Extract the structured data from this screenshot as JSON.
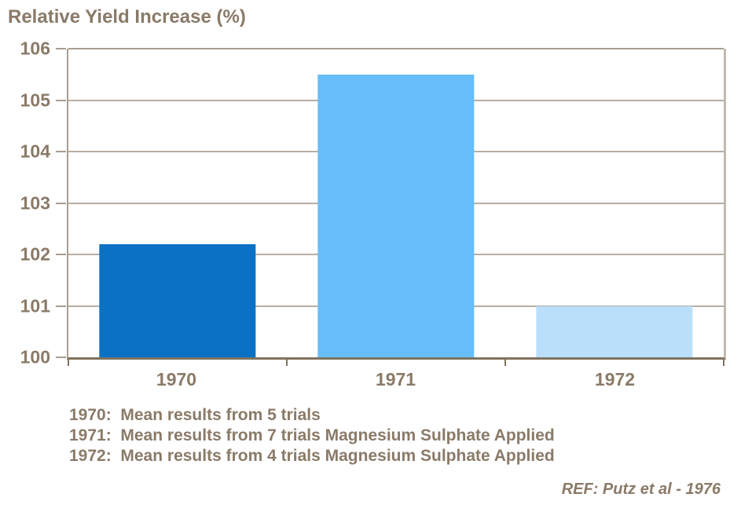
{
  "chart_data": {
    "type": "bar",
    "title": "Relative Yield Increase (%)",
    "categories": [
      "1970",
      "1971",
      "1972"
    ],
    "values": [
      102.2,
      105.5,
      101.0
    ],
    "bar_colors": [
      "#0a71c5",
      "#67bdf9",
      "#b9dffb"
    ],
    "ylim": [
      100,
      106
    ],
    "yticks": [
      100,
      101,
      102,
      103,
      104,
      105,
      106
    ],
    "xlabel": "",
    "ylabel": "",
    "grid": "horizontal",
    "legend": "none"
  },
  "footnotes": {
    "lines": [
      "1970:  Mean results from 5 trials",
      "1971:  Mean results from 7 trials Magnesium Sulphate Applied",
      "1972:  Mean results from 4 trials Magnesium Sulphate Applied"
    ]
  },
  "reference": "REF: Putz et al - 1976",
  "colors": {
    "text": "#8a7a68",
    "axis": "#a79d90",
    "axis_bottom": "#80735f",
    "gridline": "#b7aea3",
    "plot_border_right": "#c2baaf"
  }
}
